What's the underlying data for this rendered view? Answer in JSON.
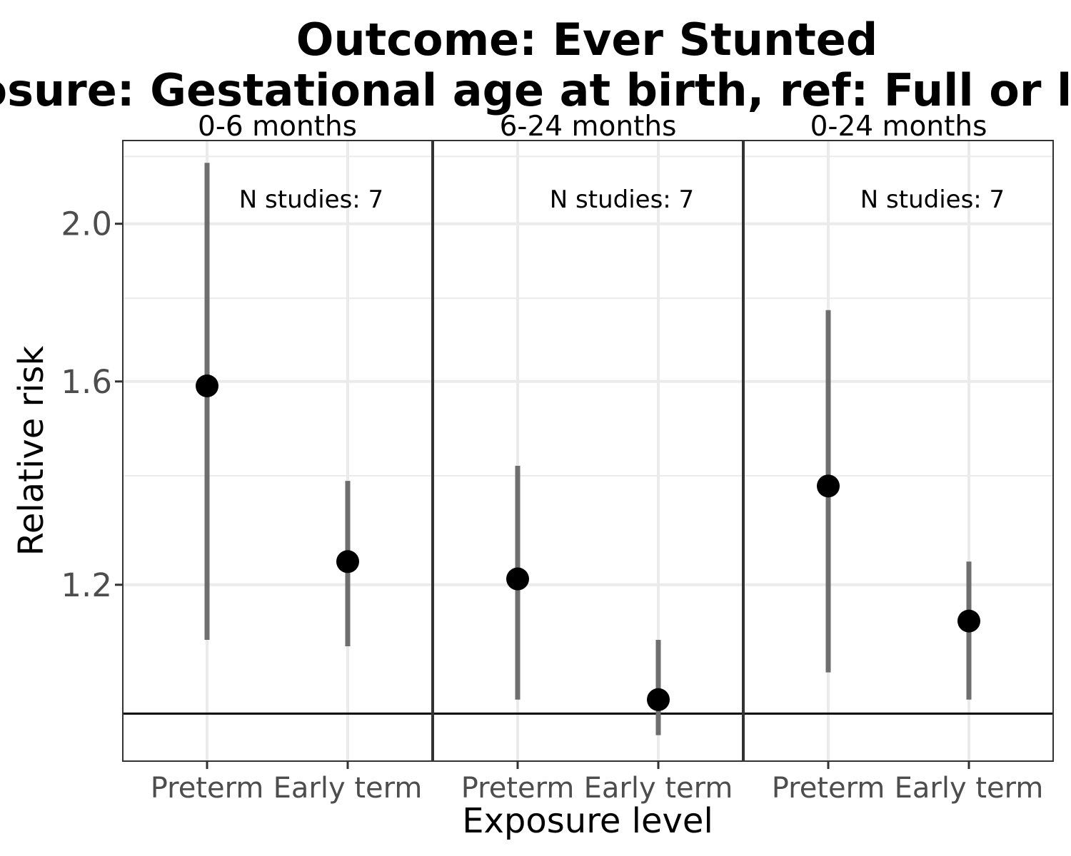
{
  "chart_data": {
    "type": "scatter",
    "title_lines": [
      "Outcome: Ever Stunted",
      "Exposure: Gestational age at birth, ref: Full or late term"
    ],
    "xlabel": "Exposure level",
    "ylabel": "Relative risk",
    "categories": [
      "Preterm",
      "Early term"
    ],
    "y_scale": "log",
    "ylim": [
      0.935,
      2.25
    ],
    "yticks": [
      1.2,
      1.6,
      2.0
    ],
    "ytick_labels": [
      "1.2",
      "1.6",
      "2.0"
    ],
    "y_minor_gridlines": [
      1.0,
      1.4,
      1.8,
      2.2
    ],
    "reference_line": 1.0,
    "grid": true,
    "panels": [
      {
        "label": "0-6 months",
        "annotation": "N studies: 7",
        "points": [
          {
            "x": "Preterm",
            "y": 1.59,
            "lower": 1.11,
            "upper": 2.18
          },
          {
            "x": "Early term",
            "y": 1.24,
            "lower": 1.1,
            "upper": 1.39
          }
        ]
      },
      {
        "label": "6-24 months",
        "annotation": "N studies: 7",
        "points": [
          {
            "x": "Preterm",
            "y": 1.21,
            "lower": 1.02,
            "upper": 1.42
          },
          {
            "x": "Early term",
            "y": 1.02,
            "lower": 0.97,
            "upper": 1.11
          }
        ]
      },
      {
        "label": "0-24 months",
        "annotation": "N studies: 7",
        "points": [
          {
            "x": "Preterm",
            "y": 1.38,
            "lower": 1.06,
            "upper": 1.77
          },
          {
            "x": "Early term",
            "y": 1.14,
            "lower": 1.02,
            "upper": 1.24
          }
        ]
      }
    ]
  }
}
